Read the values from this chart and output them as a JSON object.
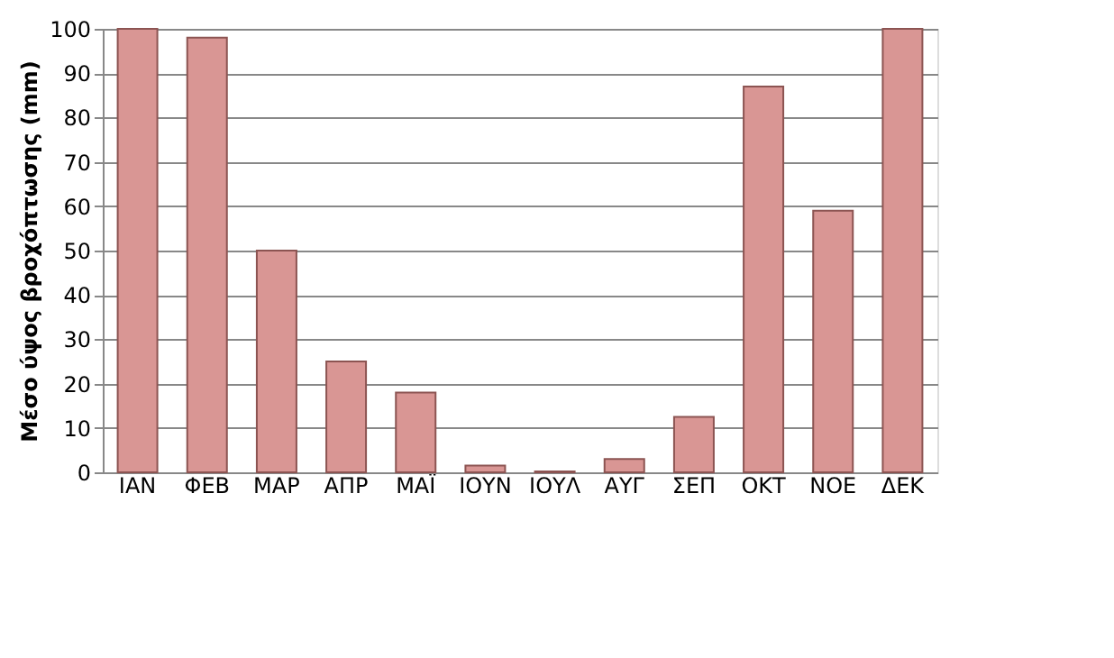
{
  "chart_data": {
    "type": "bar",
    "ylabel": "Μέσο ύψος βροχόπτωσης (mm)",
    "categories": [
      "ΙΑΝ",
      "ΦΕΒ",
      "ΜΑΡ",
      "ΑΠΡ",
      "ΜΑΪ",
      "ΙΟΥΝ",
      "ΙΟΥΛ",
      "ΑΥΓ",
      "ΣΕΠ",
      "ΟΚΤ",
      "ΝΟΕ",
      "ΔΕΚ"
    ],
    "values": [
      100,
      98,
      50,
      25,
      18,
      1.5,
      0.2,
      3,
      12.5,
      87,
      59,
      100
    ],
    "color": "#d99694",
    "ylim": [
      0,
      100
    ],
    "yticks": [
      0,
      10,
      20,
      30,
      40,
      50,
      60,
      70,
      80,
      90,
      100
    ],
    "grid": "y"
  }
}
